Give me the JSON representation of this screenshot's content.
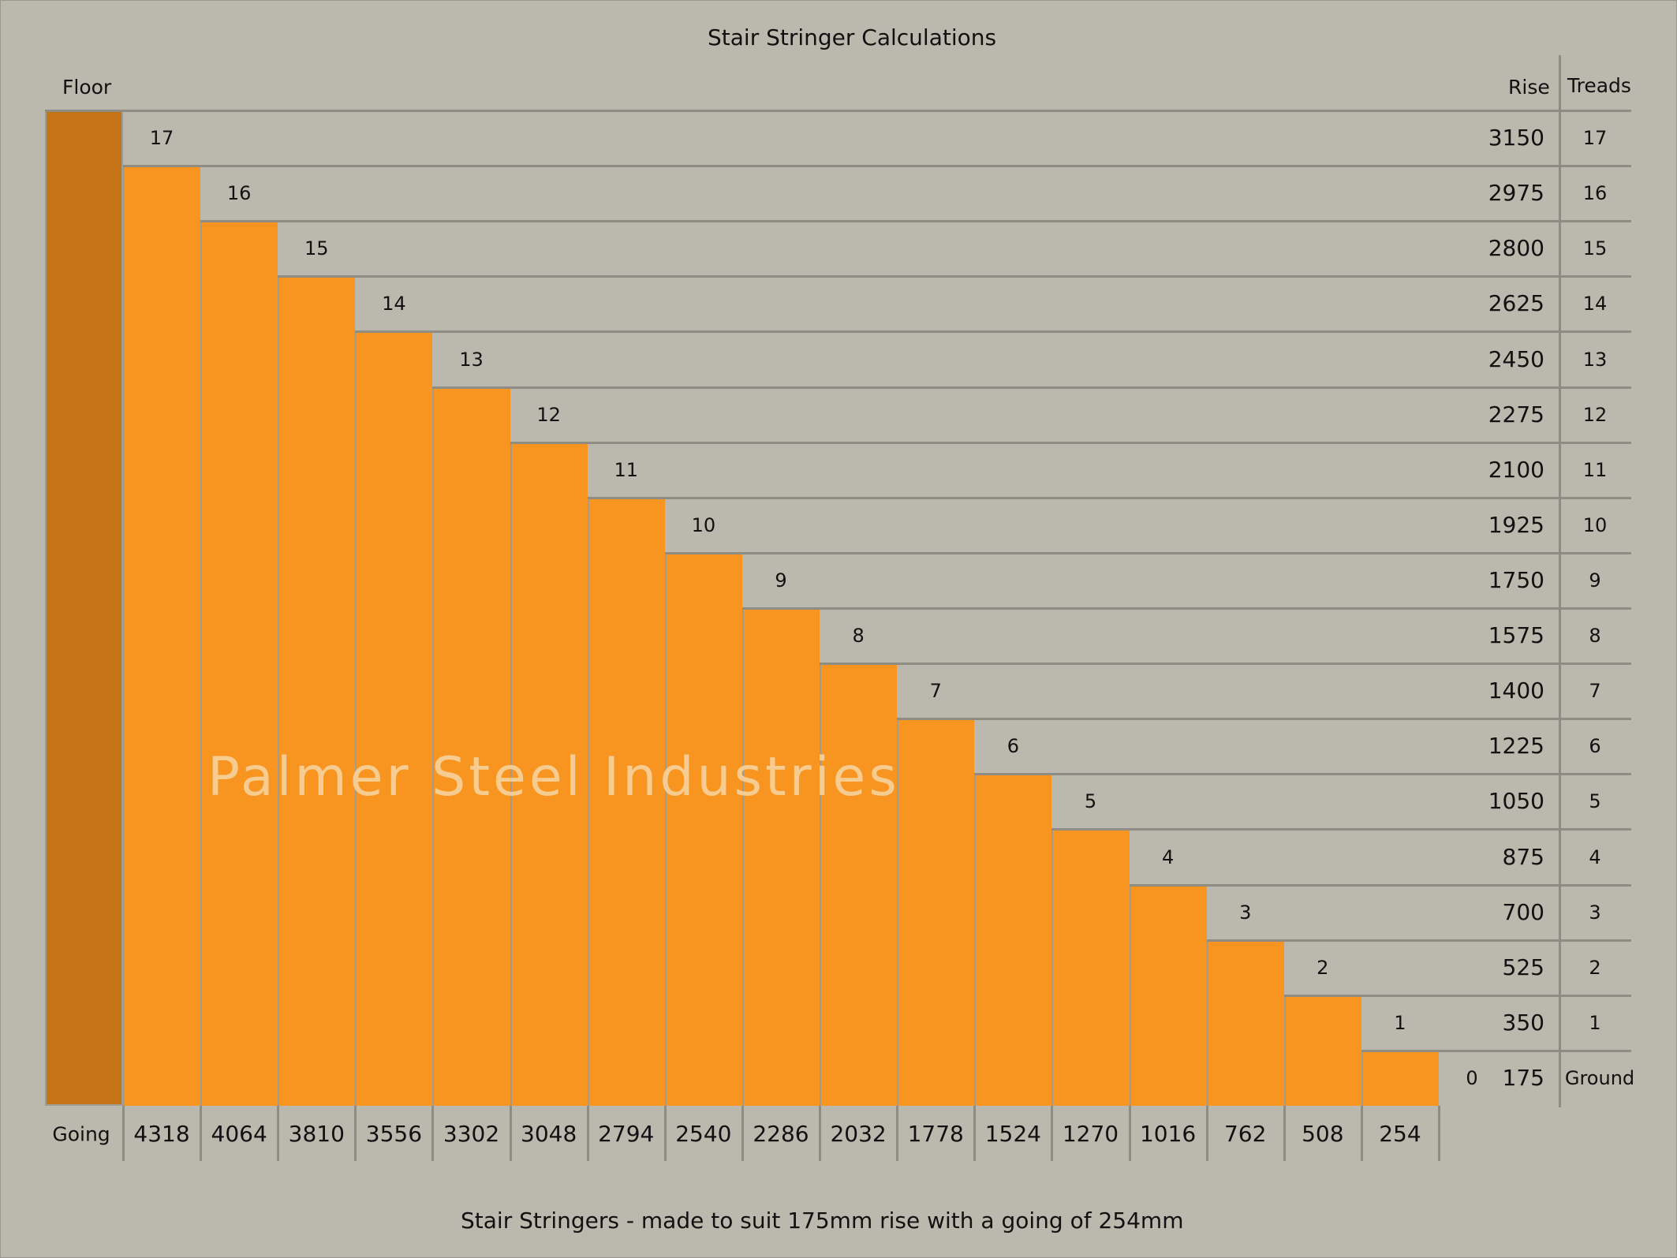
{
  "title": "Stair Stringer Calculations",
  "headers": {
    "floor": "Floor",
    "rise": "Rise",
    "treads": "Treads",
    "going": "Going",
    "ground": "Ground"
  },
  "ground_step": "0",
  "watermark": "Palmer Steel Industries",
  "caption": "Stair Stringers - made to suit 175mm rise with a going of 254mm",
  "colors": {
    "background": "#bbb8ad",
    "step": "#f79520",
    "floor": "#c47316",
    "line": "#8f8c84"
  },
  "chart_data": {
    "type": "bar",
    "steps": [
      "17",
      "16",
      "15",
      "14",
      "13",
      "12",
      "11",
      "10",
      "9",
      "8",
      "7",
      "6",
      "5",
      "4",
      "3",
      "2",
      "1"
    ],
    "going": [
      "4318",
      "4064",
      "3810",
      "3556",
      "3302",
      "3048",
      "2794",
      "2540",
      "2286",
      "2032",
      "1778",
      "1524",
      "1270",
      "1016",
      "762",
      "508",
      "254"
    ],
    "rise": [
      "3150",
      "2975",
      "2800",
      "2625",
      "2450",
      "2275",
      "2100",
      "1925",
      "1750",
      "1575",
      "1400",
      "1225",
      "1050",
      "875",
      "700",
      "525",
      "350",
      "175"
    ],
    "treads": [
      "17",
      "16",
      "15",
      "14",
      "13",
      "12",
      "11",
      "10",
      "9",
      "8",
      "7",
      "6",
      "5",
      "4",
      "3",
      "2",
      "1"
    ]
  }
}
